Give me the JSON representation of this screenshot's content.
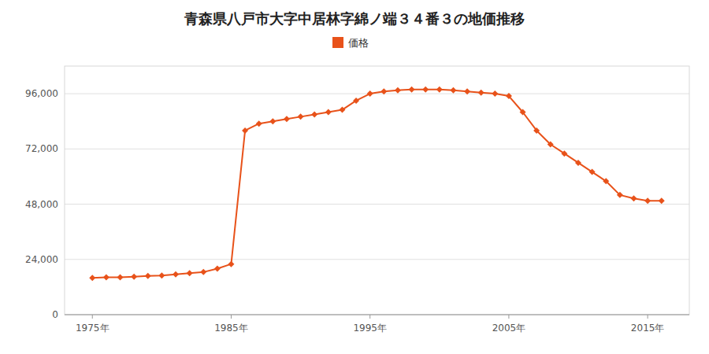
{
  "chart_data": {
    "type": "line",
    "title": "青森県八戸市大字中居林字綿ノ端３４番３の地価推移",
    "x": [
      1975,
      1976,
      1977,
      1978,
      1979,
      1980,
      1981,
      1982,
      1983,
      1984,
      1985,
      1986,
      1987,
      1988,
      1989,
      1990,
      1991,
      1992,
      1993,
      1994,
      1995,
      1996,
      1997,
      1998,
      1999,
      2000,
      2001,
      2002,
      2003,
      2004,
      2005,
      2006,
      2007,
      2008,
      2009,
      2010,
      2011,
      2012,
      2013,
      2014,
      2015,
      2016
    ],
    "series": [
      {
        "name": "価格",
        "color": "#e8521a",
        "marker": "diamond",
        "line_style": "solid",
        "values": [
          16000,
          16200,
          16200,
          16500,
          16800,
          17000,
          17500,
          18000,
          18500,
          20000,
          22000,
          80000,
          83000,
          84000,
          85000,
          86000,
          87000,
          88000,
          89000,
          93000,
          96000,
          97000,
          97500,
          97800,
          97800,
          97800,
          97500,
          97000,
          96500,
          96000,
          95000,
          88000,
          80000,
          74000,
          70000,
          66000,
          62000,
          58000,
          52000,
          50500,
          49500,
          49500
        ]
      }
    ],
    "xlim": [
      1973,
      2018
    ],
    "xticks": [
      {
        "value": 1975,
        "label": "1975年"
      },
      {
        "value": 1985,
        "label": "1985年"
      },
      {
        "value": 1995,
        "label": "1995年"
      },
      {
        "value": 2005,
        "label": "2005年"
      },
      {
        "value": 2015,
        "label": "2015年"
      }
    ],
    "ylim": [
      0,
      108000
    ],
    "yticks": [
      0,
      {
        "value": 24000,
        "label": "24,000"
      },
      {
        "value": 48000,
        "label": "48,000"
      },
      {
        "value": 72000,
        "label": "72,000"
      },
      {
        "value": 96000,
        "label": "96,000"
      }
    ],
    "grid": true,
    "legend": "top"
  }
}
